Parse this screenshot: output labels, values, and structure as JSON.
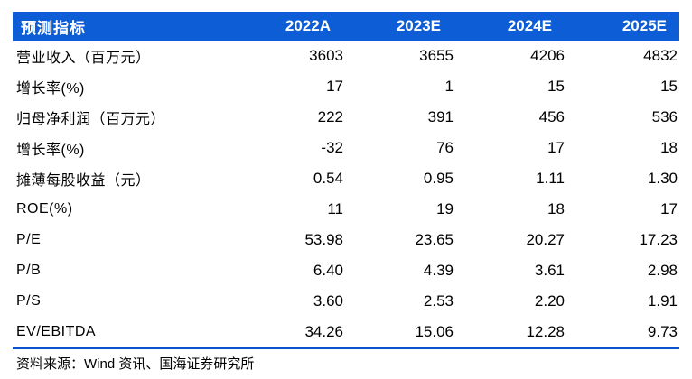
{
  "colors": {
    "header_bg": "#0d5ed6",
    "header_text": "#ffffff",
    "bottom_rule": "#0655cf",
    "body_text": "#000000"
  },
  "table": {
    "header": {
      "label": "预测指标",
      "columns": [
        "2022A",
        "2023E",
        "2024E",
        "2025E"
      ]
    },
    "rows": [
      {
        "label": "营业收入（百万元）",
        "values": [
          "3603",
          "3655",
          "4206",
          "4832"
        ]
      },
      {
        "label": "增长率(%)",
        "values": [
          "17",
          "1",
          "15",
          "15"
        ]
      },
      {
        "label": "归母净利润（百万元）",
        "values": [
          "222",
          "391",
          "456",
          "536"
        ]
      },
      {
        "label": "增长率(%)",
        "values": [
          "-32",
          "76",
          "17",
          "18"
        ]
      },
      {
        "label": "摊薄每股收益（元）",
        "values": [
          "0.54",
          "0.95",
          "1.11",
          "1.30"
        ]
      },
      {
        "label": "ROE(%)",
        "values": [
          "11",
          "19",
          "18",
          "17"
        ]
      },
      {
        "label": "P/E",
        "values": [
          "53.98",
          "23.65",
          "20.27",
          "17.23"
        ]
      },
      {
        "label": "P/B",
        "values": [
          "6.40",
          "4.39",
          "3.61",
          "2.98"
        ]
      },
      {
        "label": "P/S",
        "values": [
          "3.60",
          "2.53",
          "2.20",
          "1.91"
        ]
      },
      {
        "label": "EV/EBITDA",
        "values": [
          "34.26",
          "15.06",
          "12.28",
          "9.73"
        ]
      }
    ]
  },
  "footer": {
    "source": "资料来源：Wind 资讯、国海证券研究所"
  }
}
